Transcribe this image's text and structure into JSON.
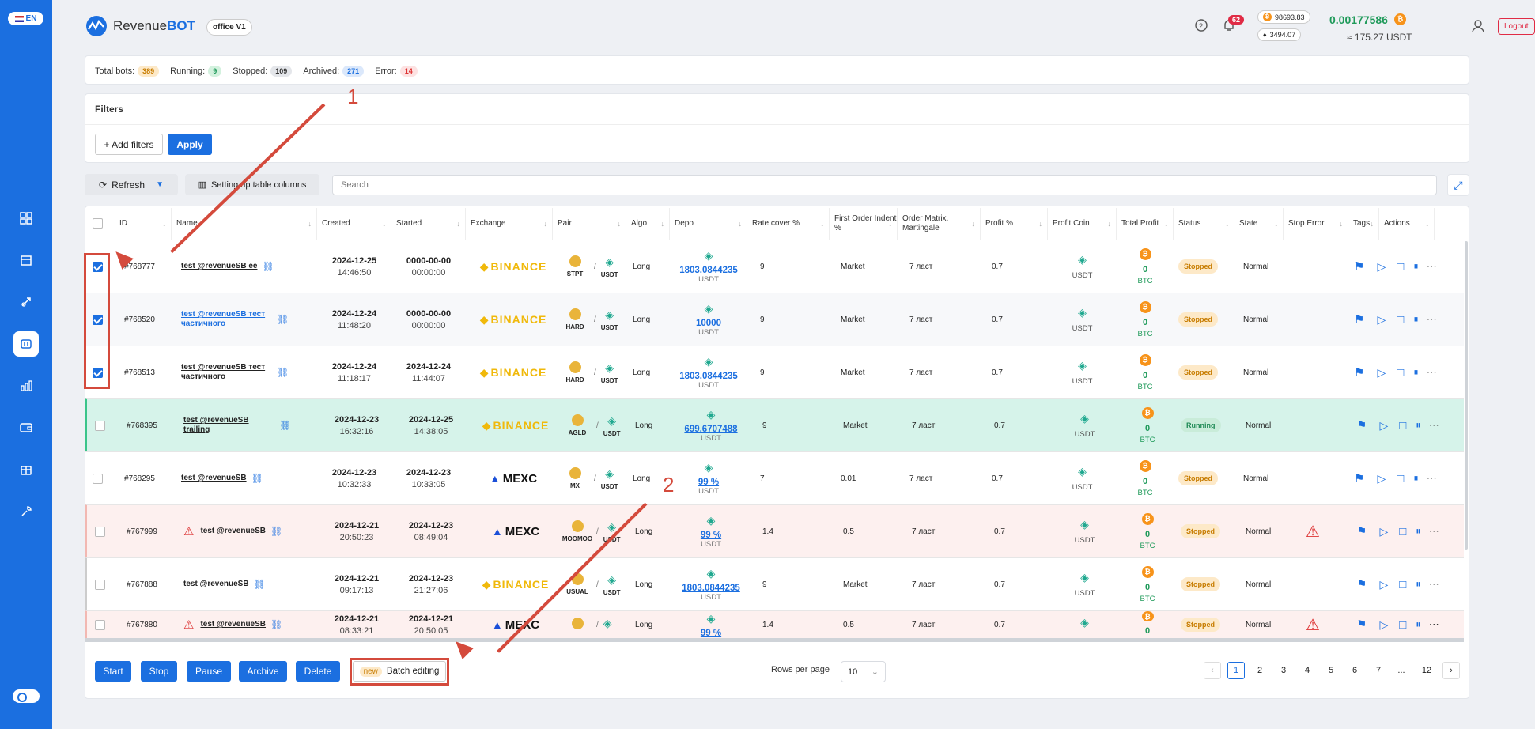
{
  "sidebar": {
    "lang": "EN",
    "icons": [
      "dashboard-icon",
      "store-icon",
      "rocket-icon",
      "bot-icon",
      "chart-icon",
      "wallet-icon",
      "gift-icon",
      "wrench-icon"
    ]
  },
  "header": {
    "app_title_a": "Revenue",
    "app_title_b": "BOT",
    "office": "office V1",
    "notifications": "62",
    "btc_price": "98693.83",
    "eth_price": "3494.07",
    "balance_btc": "0.00177586",
    "balance_usdt": "≈ 175.27 USDT",
    "logout": "Logout"
  },
  "stats": {
    "total_label": "Total bots:",
    "total": "389",
    "running_label": "Running:",
    "running": "9",
    "stopped_label": "Stopped:",
    "stopped": "109",
    "archived_label": "Archived:",
    "archived": "271",
    "error_label": "Error:",
    "error": "14"
  },
  "filters": {
    "title": "Filters",
    "add": "+ Add filters",
    "apply": "Apply"
  },
  "toolbar": {
    "refresh": "Refresh",
    "columns": "Setting up table columns",
    "search_placeholder": "Search"
  },
  "columns": [
    "ID",
    "Name",
    "Created",
    "Started",
    "Exchange",
    "Pair",
    "Algo",
    "Depo",
    "Rate cover %",
    "First Order Indent %",
    "Order Matrix. Martingale",
    "Profit %",
    "Profit Coin",
    "Total Profit",
    "Status",
    "State",
    "Stop Error",
    "Tags",
    "Actions"
  ],
  "rows": [
    {
      "id": "#768777",
      "name": "test @revenueSB ee",
      "created_d": "2024-12-25",
      "created_t": "14:46:50",
      "started_d": "0000-00-00",
      "started_t": "00:00:00",
      "exchange": "BINANCE",
      "pair_base": "STPT",
      "pair_quote": "USDT",
      "algo": "Long",
      "depo": "1803.0844235",
      "depo_unit": "USDT",
      "rate": "9",
      "indent": "Market",
      "matrix": "7 ласт",
      "profit": "0.7",
      "coin": "USDT",
      "total": "0",
      "total_unit": "BTC",
      "status": "Stopped",
      "state": "Normal",
      "checked": true
    },
    {
      "id": "#768520",
      "name": "test @revenueSB тест частичного",
      "created_d": "2024-12-24",
      "created_t": "11:48:20",
      "started_d": "0000-00-00",
      "started_t": "00:00:00",
      "exchange": "BINANCE",
      "pair_base": "HARD",
      "pair_quote": "USDT",
      "algo": "Long",
      "depo": "10000",
      "depo_unit": "USDT",
      "rate": "9",
      "indent": "Market",
      "matrix": "7 ласт",
      "profit": "0.7",
      "coin": "USDT",
      "total": "0",
      "total_unit": "BTC",
      "status": "Stopped",
      "state": "Normal",
      "checked": true
    },
    {
      "id": "#768513",
      "name": "test @revenueSB тест частичного",
      "created_d": "2024-12-24",
      "created_t": "11:18:17",
      "started_d": "2024-12-24",
      "started_t": "11:44:07",
      "exchange": "BINANCE",
      "pair_base": "HARD",
      "pair_quote": "USDT",
      "algo": "Long",
      "depo": "1803.0844235",
      "depo_unit": "USDT",
      "rate": "9",
      "indent": "Market",
      "matrix": "7 ласт",
      "profit": "0.7",
      "coin": "USDT",
      "total": "0",
      "total_unit": "BTC",
      "status": "Stopped",
      "state": "Normal",
      "checked": true
    },
    {
      "id": "#768395",
      "name": "test @revenueSB trailing",
      "created_d": "2024-12-23",
      "created_t": "16:32:16",
      "started_d": "2024-12-25",
      "started_t": "14:38:05",
      "exchange": "BINANCE",
      "pair_base": "AGLD",
      "pair_quote": "USDT",
      "algo": "Long",
      "depo": "699.6707488",
      "depo_unit": "USDT",
      "rate": "9",
      "indent": "Market",
      "matrix": "7 ласт",
      "profit": "0.7",
      "coin": "USDT",
      "total": "0",
      "total_unit": "BTC",
      "status": "Running",
      "state": "Normal",
      "checked": false
    },
    {
      "id": "#768295",
      "name": "test @revenueSB",
      "created_d": "2024-12-23",
      "created_t": "10:32:33",
      "started_d": "2024-12-23",
      "started_t": "10:33:05",
      "exchange": "MEXC",
      "pair_base": "MX",
      "pair_quote": "USDT",
      "algo": "Long",
      "depo": "99 %",
      "depo_unit": "USDT",
      "rate": "7",
      "indent": "0.01",
      "matrix": "7 ласт",
      "profit": "0.7",
      "coin": "USDT",
      "total": "0",
      "total_unit": "BTC",
      "status": "Stopped",
      "state": "Normal",
      "checked": false
    },
    {
      "id": "#767999",
      "name": "test @revenueSB",
      "created_d": "2024-12-21",
      "created_t": "20:50:23",
      "started_d": "2024-12-23",
      "started_t": "08:49:04",
      "exchange": "MEXC",
      "pair_base": "MOOMOO",
      "pair_quote": "USDT",
      "algo": "Long",
      "depo": "99 %",
      "depo_unit": "USDT",
      "rate": "1.4",
      "indent": "0.5",
      "matrix": "7 ласт",
      "profit": "0.7",
      "coin": "USDT",
      "total": "0",
      "total_unit": "BTC",
      "status": "Stopped",
      "state": "Normal",
      "checked": false
    },
    {
      "id": "#767888",
      "name": "test @revenueSB",
      "created_d": "2024-12-21",
      "created_t": "09:17:13",
      "started_d": "2024-12-23",
      "started_t": "21:27:06",
      "exchange": "BINANCE",
      "pair_base": "USUAL",
      "pair_quote": "USDT",
      "algo": "Long",
      "depo": "1803.0844235",
      "depo_unit": "USDT",
      "rate": "9",
      "indent": "Market",
      "matrix": "7 ласт",
      "profit": "0.7",
      "coin": "USDT",
      "total": "0",
      "total_unit": "BTC",
      "status": "Stopped",
      "state": "Normal",
      "checked": false
    },
    {
      "id": "#767880",
      "name": "test @revenueSB",
      "created_d": "2024-12-21",
      "created_t": "08:33:21",
      "started_d": "2024-12-21",
      "started_t": "20:50:05",
      "exchange": "MEXC",
      "pair_base": "",
      "pair_quote": "",
      "algo": "Long",
      "depo": "99 %",
      "depo_unit": "",
      "rate": "1.4",
      "indent": "0.5",
      "matrix": "7 ласт",
      "profit": "0.7",
      "coin": "",
      "total": "0",
      "total_unit": "",
      "status": "Stopped",
      "state": "Normal",
      "checked": false
    }
  ],
  "footer": {
    "start": "Start",
    "stop": "Stop",
    "pause": "Pause",
    "archive": "Archive",
    "delete": "Delete",
    "new_badge": "new",
    "batch": "Batch editing",
    "rows_per_page": "Rows per page",
    "rows_value": "10",
    "pages": [
      "1",
      "2",
      "3",
      "4",
      "5",
      "6",
      "7",
      "...",
      "12"
    ]
  },
  "annotations": {
    "a1": "1",
    "a2": "2"
  },
  "colors": {
    "accent": "#1b6fe0",
    "stopped_bg": "#fde9c8",
    "running_bg": "#c9ecd9",
    "error_row": "#fdf0ef",
    "running_row": "#d6f3ea"
  }
}
